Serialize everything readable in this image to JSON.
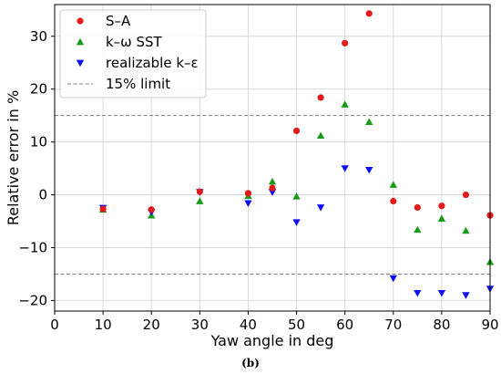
{
  "chart_data": {
    "type": "scatter",
    "xlabel": "Yaw angle in deg",
    "ylabel": "Relative error in %",
    "xlim": [
      0,
      90
    ],
    "ylim": [
      -22,
      36
    ],
    "x_ticks": [
      0,
      10,
      20,
      30,
      40,
      50,
      60,
      70,
      80,
      90
    ],
    "y_ticks": [
      -20,
      -10,
      0,
      10,
      20,
      30
    ],
    "grid": true,
    "legend_position": "top-left",
    "caption": "(b)",
    "reference_lines": [
      {
        "name": "15% limit",
        "y": 15,
        "color": "#808080",
        "style": "dashed"
      },
      {
        "name": "15% limit",
        "y": -15,
        "color": "#808080",
        "style": "dashed"
      }
    ],
    "series": [
      {
        "name": "S–A",
        "marker": "circle",
        "color": "#e31a1c",
        "x": [
          10,
          20,
          30,
          40,
          45,
          50,
          55,
          60,
          65,
          70,
          75,
          80,
          85,
          90
        ],
        "y": [
          -2.7,
          -2.8,
          0.6,
          0.3,
          1.3,
          12.1,
          18.4,
          28.7,
          34.3,
          -1.2,
          -2.4,
          -2.1,
          0.0,
          -3.9
        ]
      },
      {
        "name": "k–ω SST",
        "marker": "triangle-up",
        "color": "#1a9a1a",
        "x": [
          10,
          20,
          30,
          40,
          45,
          50,
          55,
          60,
          65,
          70,
          75,
          80,
          85,
          90
        ],
        "y": [
          -2.8,
          -3.9,
          -1.2,
          -0.2,
          2.5,
          -0.3,
          11.2,
          17.1,
          13.8,
          1.9,
          -6.6,
          -4.5,
          -6.8,
          -12.7
        ]
      },
      {
        "name": "realizable k–ε",
        "marker": "triangle-down",
        "color": "#1010ee",
        "x": [
          10,
          20,
          30,
          40,
          45,
          50,
          55,
          60,
          65,
          70,
          75,
          80,
          85,
          90
        ],
        "y": [
          -2.5,
          -3.3,
          0.5,
          -1.6,
          0.5,
          -5.2,
          -2.4,
          5.0,
          4.7,
          -15.8,
          -18.6,
          -18.6,
          -19.0,
          -17.8
        ]
      }
    ]
  }
}
